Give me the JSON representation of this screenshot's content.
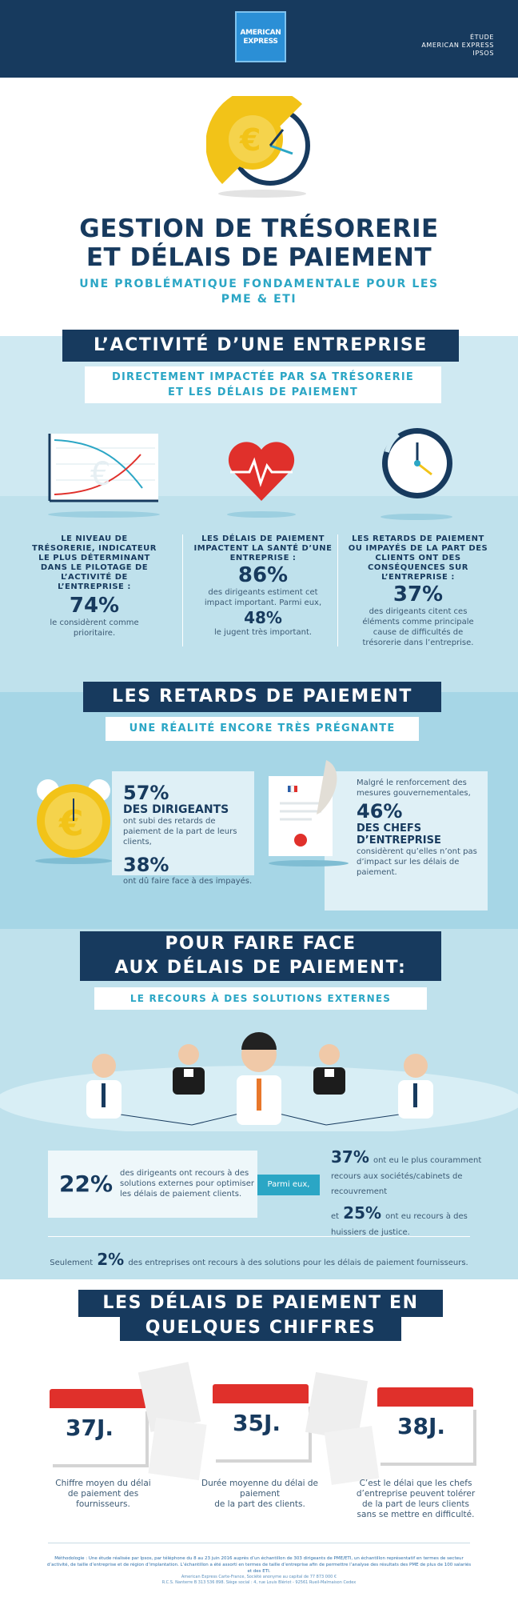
{
  "header": {
    "logo_text": "AMERICAN\nEXPRESS",
    "study_label": "ÉTUDE\nAMERICAN EXPRESS\nIPSOS"
  },
  "hero": {
    "title": "GESTION DE TRÉSORERIE\nET DÉLAIS DE PAIEMENT",
    "subtitle": "UNE PROBLÉMATIQUE FONDAMENTALE POUR LES\nPME & ETI"
  },
  "section1": {
    "heading": "L’ACTIVITÉ D’UNE ENTREPRISE",
    "subheading": "DIRECTEMENT IMPACTÉE PAR SA TRÉSORERIE\nET LES DÉLAIS DE PAIEMENT",
    "col1": {
      "caption": "LE NIVEAU DE TRÉSORERIE, INDICATEUR LE PLUS DÉTERMINANT DANS LE PILOTAGE DE L’ACTIVITÉ DE L’ENTREPRISE :",
      "stat": "74%",
      "text": "le considèrent comme prioritaire."
    },
    "col2": {
      "caption": "LES DÉLAIS DE PAIEMENT IMPACTENT LA SANTÉ D’UNE ENTREPRISE :",
      "stat1": "86%",
      "text1": "des dirigeants estiment cet impact important. Parmi eux,",
      "stat2": "48%",
      "text2": "le jugent très important."
    },
    "col3": {
      "caption": "LES RETARDS DE PAIEMENT OU IMPAYÉS DE LA PART DES CLIENTS ONT DES CONSÉQUENCES SUR L’ENTREPRISE :",
      "stat": "37%",
      "text": "des dirigeants citent ces éléments comme principale cause de difficultés de trésorerie dans l’entreprise."
    }
  },
  "section2": {
    "heading": "LES RETARDS DE PAIEMENT",
    "subheading": "UNE RÉALITÉ ENCORE TRÈS PRÉGNANTE",
    "left": {
      "stat1": "57%",
      "label1": "DES DIRIGEANTS",
      "text1": "ont subi des retards de paiement de la part de leurs clients,",
      "stat2": "38%",
      "text2": "ont dû faire face à des impayés."
    },
    "right": {
      "intro": "Malgré le renforcement des mesures gouvernementales,",
      "stat": "46%",
      "label": "DES CHEFS D’ENTREPRISE",
      "text": "considèrent qu’elles n’ont pas d’impact sur les délais de paiement."
    }
  },
  "section3": {
    "heading_line1": "POUR FAIRE FACE",
    "heading_line2": "AUX DÉLAIS DE PAIEMENT:",
    "subheading": "LE RECOURS À DES SOLUTIONS EXTERNES",
    "stat_main": "22%",
    "text_main": "des dirigeants ont recours à des solutions externes pour optimiser les délais de paiement clients.",
    "parmi": "Parmi eux,",
    "stat_a": "37%",
    "text_a": "ont eu le plus couramment recours aux sociétés/cabinets de recouvrement",
    "et": "et",
    "stat_b": "25%",
    "text_b": "ont eu recours à des huissiers de justice.",
    "footer_pre": "Seulement",
    "footer_stat": "2%",
    "footer_text": "des entreprises ont recours à des solutions pour les délais de paiement fournisseurs."
  },
  "section4": {
    "heading_line1": "LES DÉLAIS DE PAIEMENT EN",
    "heading_line2": "QUELQUES CHIFFRES",
    "items": [
      {
        "value": "37J.",
        "text": "Chiffre moyen du délai\nde paiement des fournisseurs."
      },
      {
        "value": "35J.",
        "text": "Durée moyenne du délai de paiement\nde la part des clients."
      },
      {
        "value": "38J.",
        "text": "C’est le délai que les chefs d’entreprise peuvent tolérer de la part de leurs clients sans se mettre en difficulté."
      }
    ]
  },
  "footer": {
    "methodology": "Méthodologie : Une étude réalisée par Ipsos, par téléphone du 8 au 23 juin 2016 auprès d’un échantillon de 303 dirigeants de PME/ETI, un échantillon représentatif en termes de secteur d’activité, de taille d’entreprise et de région d’implantation. L’échantillon a été assorti en termes de taille d’entreprise afin de permettre l’analyse des résultats des PME de plus de 100 salariés et des ETI.",
    "legal": "American Express Carte-France, Société anonyme au capital de 77 873 000 €\nR.C.S. Nanterre B 313 536 898. Siège social : 4, rue Louis Blériot - 92561 Rueil-Malmaison Cedex"
  },
  "colors": {
    "navy": "#173a5e",
    "teal": "#2ba6c5",
    "band_light": "#bfe1ec",
    "band_mid": "#a6d6e6",
    "red": "#e0302b",
    "gold": "#f2c318"
  }
}
